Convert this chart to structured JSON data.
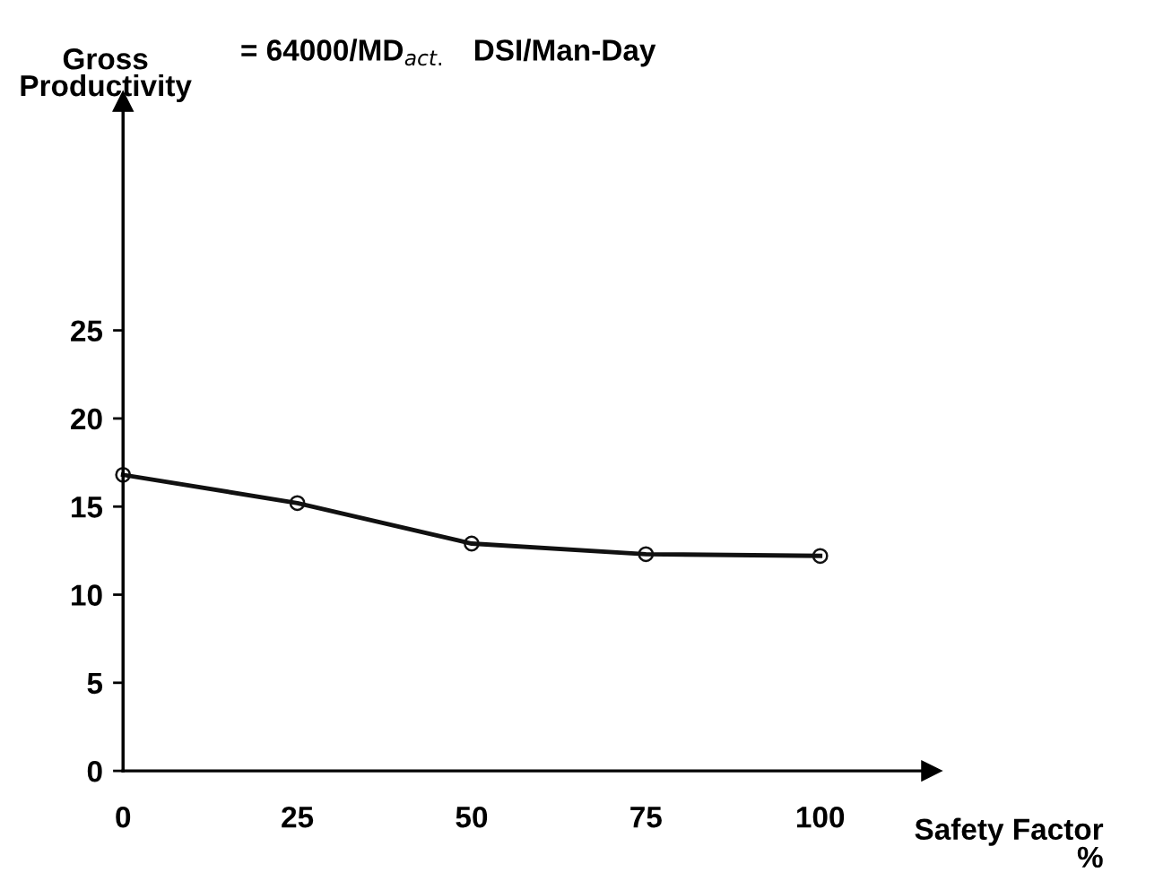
{
  "chart_data": {
    "type": "line",
    "title": "= 64000/MD$_{act.}$   DSI/Man-Day",
    "ylabel": "Gross\nProductivity",
    "xlabel": "Safety Factor\n%",
    "x": [
      0,
      25,
      50,
      75,
      100
    ],
    "series": [
      {
        "color": "#111111",
        "values": [
          16.8,
          15.2,
          12.9,
          12.3,
          12.2
        ]
      }
    ],
    "xlim": [
      0,
      116
    ],
    "ylim": [
      0,
      38
    ],
    "xticks": [
      0,
      25,
      50,
      75,
      100
    ],
    "yticks": [
      0,
      5,
      10,
      15,
      20,
      25
    ],
    "marker": "circle",
    "line_style": "solid",
    "grid": false,
    "legend": false
  }
}
